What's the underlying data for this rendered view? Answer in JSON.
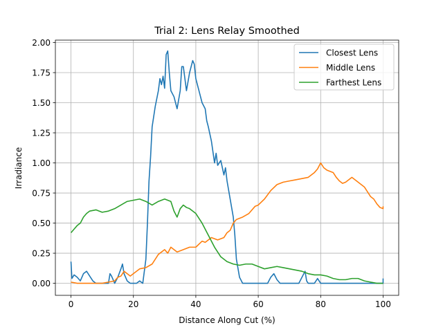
{
  "chart_data": {
    "type": "line",
    "title": "Trial 2: Lens Relay Smoothed",
    "xlabel": "Distance Along Cut (%)",
    "ylabel": "Irradiance",
    "xlim": [
      -5,
      105
    ],
    "ylim": [
      -0.1,
      2.02
    ],
    "xticks": [
      0,
      20,
      40,
      60,
      80,
      100
    ],
    "xtick_labels": [
      "0",
      "20",
      "40",
      "60",
      "80",
      "100"
    ],
    "yticks": [
      0.0,
      0.25,
      0.5,
      0.75,
      1.0,
      1.25,
      1.5,
      1.75,
      2.0
    ],
    "ytick_labels": [
      "0.00",
      "0.25",
      "0.50",
      "0.75",
      "1.00",
      "1.25",
      "1.50",
      "1.75",
      "2.00"
    ],
    "grid": true,
    "legend_position": "top-right",
    "series": [
      {
        "name": "Closest Lens",
        "color": "#1f77b4",
        "points": [
          [
            0,
            0.18
          ],
          [
            0.3,
            0.04
          ],
          [
            1,
            0.07
          ],
          [
            2,
            0.05
          ],
          [
            3,
            0.02
          ],
          [
            4,
            0.08
          ],
          [
            5,
            0.1
          ],
          [
            6,
            0.06
          ],
          [
            7,
            0.02
          ],
          [
            8,
            0.0
          ],
          [
            12,
            0.0
          ],
          [
            12.5,
            0.08
          ],
          [
            13,
            0.06
          ],
          [
            14,
            0.0
          ],
          [
            15,
            0.05
          ],
          [
            16,
            0.12
          ],
          [
            16.5,
            0.16
          ],
          [
            17,
            0.08
          ],
          [
            18,
            0.02
          ],
          [
            19,
            0.0
          ],
          [
            21,
            0.0
          ],
          [
            22,
            0.02
          ],
          [
            23,
            0.0
          ],
          [
            24,
            0.2
          ],
          [
            24.5,
            0.5
          ],
          [
            25,
            0.85
          ],
          [
            25.5,
            1.05
          ],
          [
            26,
            1.3
          ],
          [
            27,
            1.47
          ],
          [
            28,
            1.6
          ],
          [
            28.5,
            1.7
          ],
          [
            29,
            1.65
          ],
          [
            29.5,
            1.72
          ],
          [
            30,
            1.62
          ],
          [
            30.5,
            1.9
          ],
          [
            31,
            1.93
          ],
          [
            31.5,
            1.75
          ],
          [
            32,
            1.6
          ],
          [
            33,
            1.55
          ],
          [
            34,
            1.45
          ],
          [
            35,
            1.6
          ],
          [
            35.5,
            1.8
          ],
          [
            36,
            1.8
          ],
          [
            37,
            1.6
          ],
          [
            38,
            1.75
          ],
          [
            39,
            1.85
          ],
          [
            39.5,
            1.82
          ],
          [
            40,
            1.7
          ],
          [
            41,
            1.6
          ],
          [
            42,
            1.5
          ],
          [
            43,
            1.45
          ],
          [
            43.5,
            1.35
          ],
          [
            44,
            1.3
          ],
          [
            45,
            1.18
          ],
          [
            46,
            1.0
          ],
          [
            46.5,
            1.08
          ],
          [
            47,
            0.98
          ],
          [
            48,
            1.02
          ],
          [
            49,
            0.9
          ],
          [
            49.5,
            0.96
          ],
          [
            50,
            0.85
          ],
          [
            51,
            0.7
          ],
          [
            52,
            0.55
          ],
          [
            52.5,
            0.4
          ],
          [
            53,
            0.2
          ],
          [
            54,
            0.05
          ],
          [
            55,
            0.0
          ],
          [
            63,
            0.0
          ],
          [
            64,
            0.05
          ],
          [
            65,
            0.08
          ],
          [
            66,
            0.03
          ],
          [
            67,
            0.0
          ],
          [
            73,
            0.0
          ],
          [
            74,
            0.05
          ],
          [
            75,
            0.1
          ],
          [
            75.5,
            0.02
          ],
          [
            76,
            0.0
          ],
          [
            78,
            0.0
          ],
          [
            79,
            0.04
          ],
          [
            80,
            0.0
          ],
          [
            100,
            0.0
          ],
          [
            100,
            0.04
          ]
        ]
      },
      {
        "name": "Middle Lens",
        "color": "#ff7f0e",
        "points": [
          [
            0,
            0.01
          ],
          [
            2,
            0.0
          ],
          [
            10,
            0.0
          ],
          [
            12,
            0.01
          ],
          [
            14,
            0.02
          ],
          [
            15,
            0.05
          ],
          [
            16,
            0.06
          ],
          [
            17,
            0.1
          ],
          [
            18,
            0.08
          ],
          [
            19,
            0.06
          ],
          [
            20,
            0.08
          ],
          [
            22,
            0.12
          ],
          [
            24,
            0.13
          ],
          [
            26,
            0.16
          ],
          [
            28,
            0.24
          ],
          [
            30,
            0.28
          ],
          [
            31,
            0.25
          ],
          [
            32,
            0.3
          ],
          [
            34,
            0.26
          ],
          [
            36,
            0.28
          ],
          [
            38,
            0.3
          ],
          [
            40,
            0.3
          ],
          [
            42,
            0.35
          ],
          [
            43,
            0.34
          ],
          [
            45,
            0.38
          ],
          [
            47,
            0.36
          ],
          [
            49,
            0.38
          ],
          [
            50,
            0.42
          ],
          [
            51,
            0.44
          ],
          [
            52,
            0.5
          ],
          [
            53,
            0.53
          ],
          [
            55,
            0.55
          ],
          [
            57,
            0.58
          ],
          [
            59,
            0.64
          ],
          [
            60,
            0.65
          ],
          [
            62,
            0.7
          ],
          [
            64,
            0.77
          ],
          [
            66,
            0.82
          ],
          [
            68,
            0.84
          ],
          [
            70,
            0.85
          ],
          [
            72,
            0.86
          ],
          [
            74,
            0.87
          ],
          [
            76,
            0.88
          ],
          [
            78,
            0.92
          ],
          [
            79,
            0.95
          ],
          [
            80,
            1.0
          ],
          [
            81,
            0.96
          ],
          [
            82,
            0.94
          ],
          [
            84,
            0.92
          ],
          [
            85,
            0.88
          ],
          [
            86,
            0.85
          ],
          [
            87,
            0.83
          ],
          [
            88,
            0.84
          ],
          [
            89,
            0.86
          ],
          [
            90,
            0.88
          ],
          [
            91,
            0.86
          ],
          [
            92,
            0.84
          ],
          [
            94,
            0.8
          ],
          [
            95,
            0.76
          ],
          [
            96,
            0.72
          ],
          [
            97,
            0.7
          ],
          [
            98,
            0.66
          ],
          [
            99,
            0.63
          ],
          [
            100,
            0.62
          ],
          [
            100,
            0.64
          ]
        ]
      },
      {
        "name": "Farthest Lens",
        "color": "#2ca02c",
        "points": [
          [
            0,
            0.42
          ],
          [
            1,
            0.45
          ],
          [
            2,
            0.48
          ],
          [
            3,
            0.5
          ],
          [
            4,
            0.55
          ],
          [
            5,
            0.58
          ],
          [
            6,
            0.6
          ],
          [
            8,
            0.61
          ],
          [
            10,
            0.59
          ],
          [
            12,
            0.6
          ],
          [
            14,
            0.62
          ],
          [
            16,
            0.65
          ],
          [
            18,
            0.68
          ],
          [
            20,
            0.69
          ],
          [
            22,
            0.7
          ],
          [
            24,
            0.68
          ],
          [
            26,
            0.65
          ],
          [
            28,
            0.68
          ],
          [
            30,
            0.7
          ],
          [
            32,
            0.68
          ],
          [
            33,
            0.6
          ],
          [
            34,
            0.55
          ],
          [
            35,
            0.62
          ],
          [
            36,
            0.65
          ],
          [
            37,
            0.63
          ],
          [
            38,
            0.62
          ],
          [
            40,
            0.58
          ],
          [
            42,
            0.5
          ],
          [
            44,
            0.4
          ],
          [
            46,
            0.3
          ],
          [
            48,
            0.22
          ],
          [
            50,
            0.18
          ],
          [
            52,
            0.16
          ],
          [
            54,
            0.15
          ],
          [
            56,
            0.16
          ],
          [
            58,
            0.16
          ],
          [
            60,
            0.14
          ],
          [
            62,
            0.12
          ],
          [
            64,
            0.13
          ],
          [
            66,
            0.14
          ],
          [
            68,
            0.13
          ],
          [
            70,
            0.12
          ],
          [
            72,
            0.11
          ],
          [
            74,
            0.1
          ],
          [
            76,
            0.08
          ],
          [
            78,
            0.07
          ],
          [
            80,
            0.07
          ],
          [
            82,
            0.06
          ],
          [
            84,
            0.04
          ],
          [
            86,
            0.03
          ],
          [
            88,
            0.03
          ],
          [
            90,
            0.04
          ],
          [
            92,
            0.04
          ],
          [
            94,
            0.02
          ],
          [
            96,
            0.01
          ],
          [
            98,
            0.0
          ],
          [
            100,
            0.0
          ]
        ]
      }
    ]
  }
}
